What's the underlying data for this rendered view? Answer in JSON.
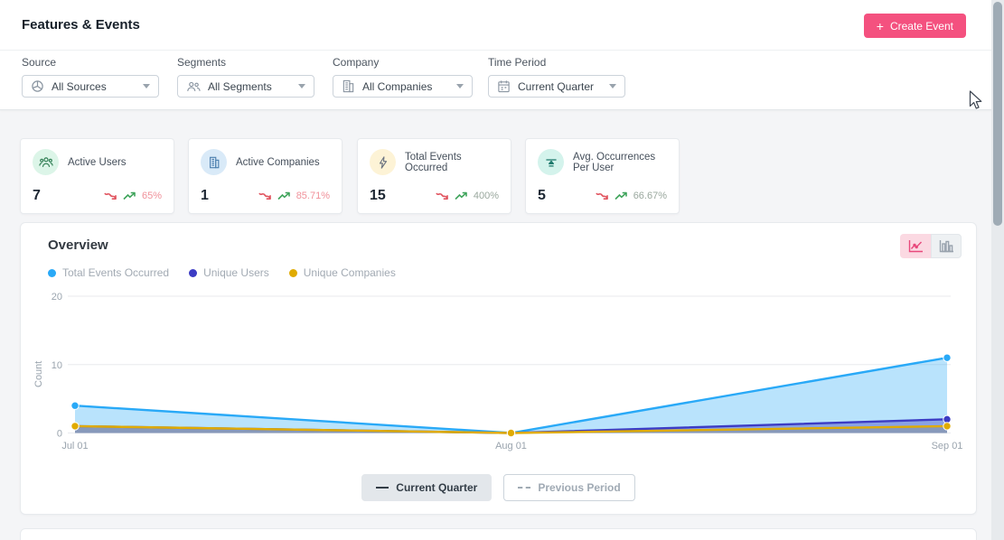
{
  "header": {
    "title": "Features & Events",
    "create_plus": "+",
    "create_label": "Create Event"
  },
  "filters": [
    {
      "label": "Source",
      "value": "All Sources"
    },
    {
      "label": "Segments",
      "value": "All Segments"
    },
    {
      "label": "Company",
      "value": "All Companies"
    },
    {
      "label": "Time Period",
      "value": "Current Quarter"
    }
  ],
  "stats": [
    {
      "label": "Active Users",
      "value": "7",
      "trend": "down",
      "percent": "65%"
    },
    {
      "label": "Active Companies",
      "value": "1",
      "trend": "down",
      "percent": "85.71%"
    },
    {
      "label": "Total Events Occurred",
      "value": "15",
      "trend": "up",
      "percent": "400%"
    },
    {
      "label": "Avg. Occurrences Per User",
      "value": "5",
      "trend": "up",
      "percent": "66.67%"
    }
  ],
  "overview": {
    "title": "Overview",
    "legend": [
      {
        "label": "Total Events Occurred",
        "color": "#29a9f7"
      },
      {
        "label": "Unique Users",
        "color": "#3c3cc4"
      },
      {
        "label": "Unique Companies",
        "color": "#e0ab00"
      }
    ],
    "period_buttons": {
      "current": "Current Quarter",
      "previous": "Previous Period"
    }
  },
  "chart_data": {
    "type": "area",
    "x": [
      "Jul 01",
      "Aug 01",
      "Sep 01"
    ],
    "series": [
      {
        "name": "Total Events Occurred",
        "values": [
          4,
          0,
          11
        ],
        "color": "#29a9f7",
        "fill": "rgba(41,169,247,0.33)"
      },
      {
        "name": "Unique Users",
        "values": [
          1,
          0,
          2
        ],
        "color": "#3c3cc4",
        "fill": "rgba(64,64,196,0.40)"
      },
      {
        "name": "Unique Companies",
        "values": [
          1,
          0,
          1
        ],
        "color": "#e0ab00",
        "fill": "rgba(132,142,136,0.45)"
      }
    ],
    "title": "Overview",
    "xlabel": "",
    "ylabel": "Count",
    "yticks": [
      0,
      10,
      20
    ],
    "ylim": [
      0,
      20
    ],
    "grid": true,
    "legend_position": "top-left"
  },
  "colors": {
    "accent_pink": "#f4517f",
    "trend_up_green": "#3fa45b",
    "trend_down_red": "#e0515c"
  }
}
